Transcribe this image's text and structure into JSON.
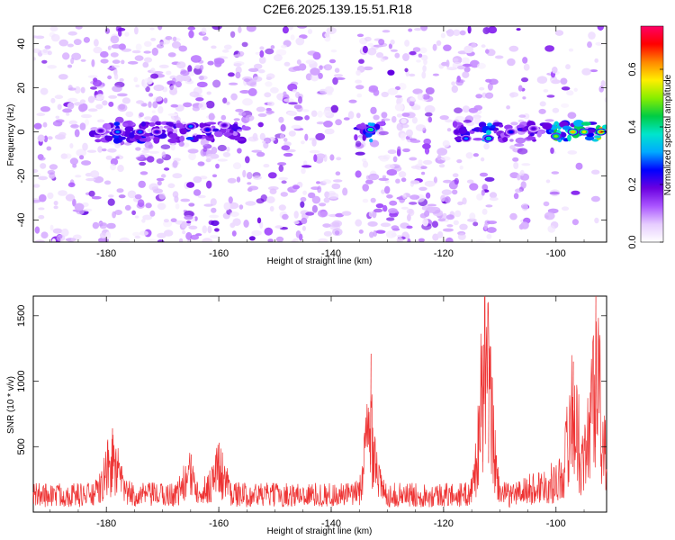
{
  "title": "C2E6.2025.139.15.51.R18",
  "chart_data": [
    {
      "type": "heatmap",
      "xlabel": "Height of straight line (km)",
      "ylabel": "Frequency (Hz)",
      "xlim": [
        -193,
        -91
      ],
      "ylim": [
        -50,
        48
      ],
      "xticks": [
        -180,
        -160,
        -140,
        -120,
        -100
      ],
      "yticks": [
        -40,
        -20,
        0,
        20,
        40
      ],
      "colorbar": {
        "label": "Normalized spectral amplitude",
        "range": [
          0,
          0.75
        ],
        "ticks": [
          0.0,
          0.2,
          0.4,
          0.6
        ],
        "colormap": [
          "#ffffff",
          "#e6ccff",
          "#aa55ff",
          "#6a00e0",
          "#0000ff",
          "#00aaff",
          "#00e5cc",
          "#00cc44",
          "#88ee00",
          "#ffee00",
          "#ff8800",
          "#ff0000",
          "#ff0066"
        ]
      },
      "ridges": [
        {
          "x": -181,
          "freq": 0.5,
          "amp": 0.2
        },
        {
          "x": -178,
          "freq": 0.0,
          "amp": 0.3
        },
        {
          "x": -174,
          "freq": 0.0,
          "amp": 0.28
        },
        {
          "x": -171,
          "freq": 0.0,
          "amp": 0.22
        },
        {
          "x": -165,
          "freq": 2.5,
          "amp": 0.3
        },
        {
          "x": -162,
          "freq": 1.0,
          "amp": 0.25
        },
        {
          "x": -159,
          "freq": 3.0,
          "amp": 0.2
        },
        {
          "x": -133,
          "freq": 1.0,
          "amp": 0.42
        },
        {
          "x": -116,
          "freq": -3.0,
          "amp": 0.3
        },
        {
          "x": -112,
          "freq": -3.0,
          "amp": 0.4
        },
        {
          "x": -108,
          "freq": 0.0,
          "amp": 0.25
        },
        {
          "x": -104,
          "freq": 1.5,
          "amp": 0.2
        },
        {
          "x": -100,
          "freq": -2.0,
          "amp": 0.5
        },
        {
          "x": -97,
          "freq": 0.0,
          "amp": 0.6
        },
        {
          "x": -95,
          "freq": 0.0,
          "amp": 0.55
        },
        {
          "x": -92,
          "freq": 0.0,
          "amp": 0.65
        }
      ]
    },
    {
      "type": "line",
      "xlabel": "Height of straight line (km)",
      "ylabel": "SNR (10 * v/v)",
      "xlim": [
        -193,
        -91
      ],
      "ylim": [
        0,
        1650
      ],
      "xticks": [
        -180,
        -160,
        -140,
        -120,
        -100
      ],
      "yticks": [
        500,
        1000,
        1500
      ],
      "color": "#ee3333",
      "baseline": 150,
      "peaks": [
        {
          "x": -179,
          "y": 640
        },
        {
          "x": -165,
          "y": 440
        },
        {
          "x": -160,
          "y": 530
        },
        {
          "x": -133,
          "y": 1210
        },
        {
          "x": -113,
          "y": 1280
        },
        {
          "x": -112,
          "y": 1250
        },
        {
          "x": -97,
          "y": 1150
        },
        {
          "x": -93,
          "y": 1650
        }
      ]
    }
  ]
}
